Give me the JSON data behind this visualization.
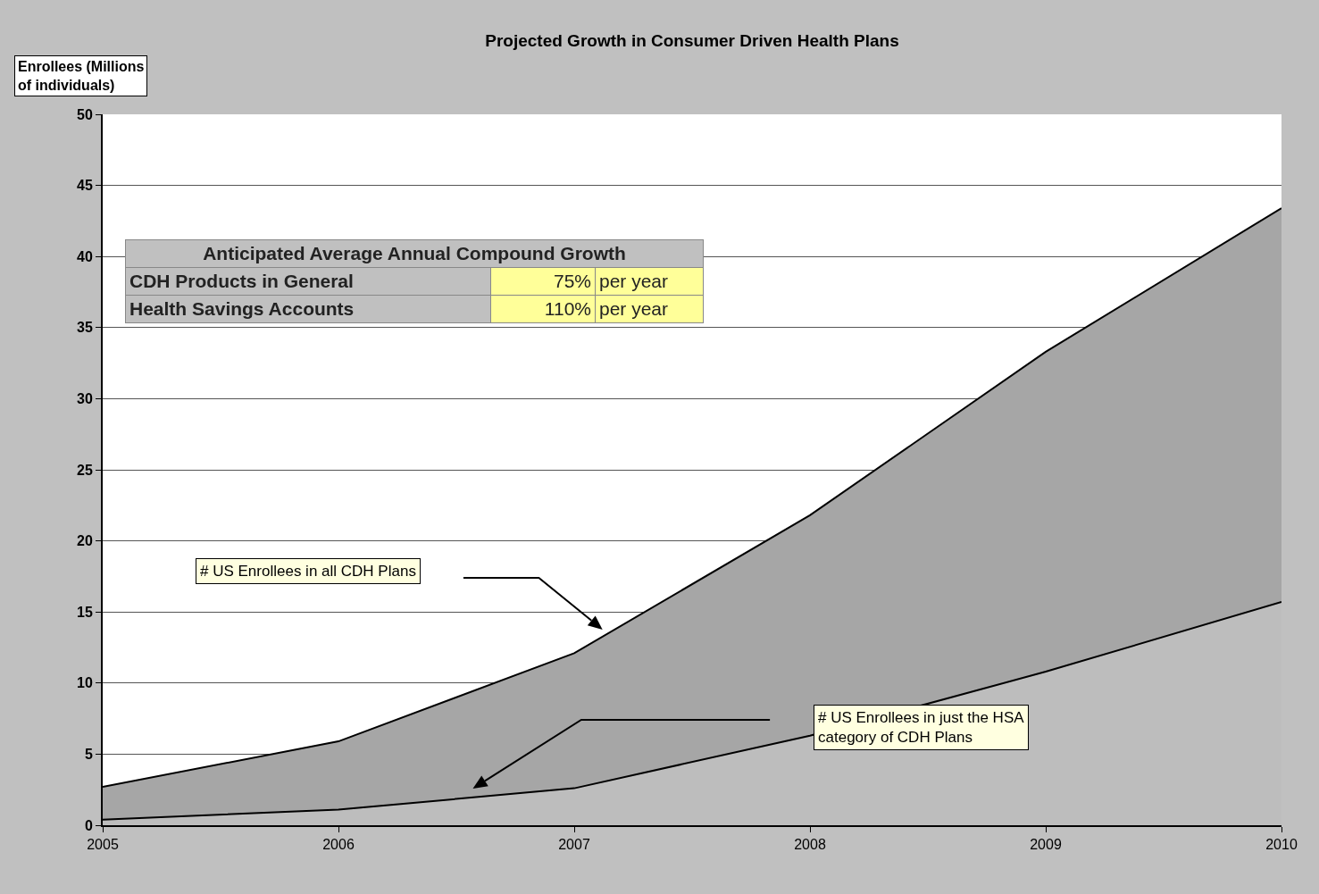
{
  "chart_data": {
    "type": "area",
    "title": "Projected Growth in Consumer Driven Health Plans",
    "ylabel": "Enrollees (Millions of individuals)",
    "x": [
      2005,
      2006,
      2007,
      2008,
      2009,
      2010
    ],
    "series": [
      {
        "color": "#a6a6a6",
        "values": [
          2.7,
          5.9,
          12.1,
          21.8,
          33.3,
          43.4
        ]
      },
      {
        "color": "#bdbdbd",
        "values": [
          0.4,
          1.1,
          2.6,
          6.3,
          10.8,
          15.7
        ]
      }
    ],
    "xlim": [
      2005,
      2010
    ],
    "xticks": [
      2005,
      2006,
      2007,
      2008,
      2009,
      2010
    ],
    "ylim": [
      0,
      50
    ],
    "yticks": [
      0,
      5,
      10,
      15,
      20,
      25,
      30,
      35,
      40,
      45,
      50
    ],
    "grid": "y",
    "annotations": [
      "# US Enrollees in all CDH Plans",
      "# US Enrollees in just the HSA category of CDH Plans",
      "Anticipated Average Annual Compound Growth",
      "CDH Products in General",
      "75%",
      "per year",
      "Health Savings Accounts",
      "110%",
      "per year"
    ]
  }
}
